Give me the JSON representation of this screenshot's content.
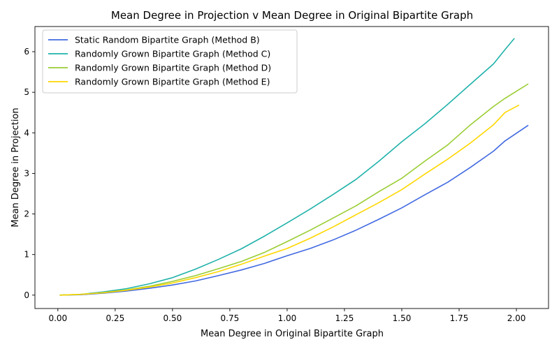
{
  "chart_data": {
    "type": "line",
    "title": "Mean Degree in Projection v Mean Degree in Original Bipartite Graph",
    "xlabel": "Mean Degree in Original Bipartite Graph",
    "ylabel": "Mean Degree in Projection",
    "xlim": [
      -0.1,
      2.14
    ],
    "ylim": [
      -0.33,
      6.62
    ],
    "xticks": [
      0.0,
      0.25,
      0.5,
      0.75,
      1.0,
      1.25,
      1.5,
      1.75,
      2.0
    ],
    "xtick_labels": [
      "0.00",
      "0.25",
      "0.50",
      "0.75",
      "1.00",
      "1.25",
      "1.50",
      "1.75",
      "2.00"
    ],
    "yticks": [
      0,
      1,
      2,
      3,
      4,
      5,
      6
    ],
    "ytick_labels": [
      "0",
      "1",
      "2",
      "3",
      "4",
      "5",
      "6"
    ],
    "grid": false,
    "legend_position": "top-left",
    "series": [
      {
        "name": "Static Random Bipartite Graph (Method B)",
        "color": "#4169E1",
        "x": [
          0.01,
          0.1,
          0.2,
          0.3,
          0.4,
          0.5,
          0.6,
          0.7,
          0.8,
          0.9,
          1.0,
          1.1,
          1.2,
          1.3,
          1.4,
          1.5,
          1.6,
          1.7,
          1.8,
          1.9,
          1.95,
          2.05
        ],
        "y": [
          0.0,
          0.01,
          0.05,
          0.1,
          0.17,
          0.25,
          0.35,
          0.48,
          0.62,
          0.78,
          0.97,
          1.15,
          1.36,
          1.6,
          1.87,
          2.15,
          2.47,
          2.78,
          3.15,
          3.55,
          3.8,
          4.18
        ]
      },
      {
        "name": "Randomly Grown Bipartite Graph (Method C)",
        "color": "#20B2AA",
        "x": [
          0.01,
          0.1,
          0.2,
          0.3,
          0.4,
          0.5,
          0.6,
          0.7,
          0.8,
          0.9,
          1.0,
          1.1,
          1.2,
          1.3,
          1.4,
          1.5,
          1.6,
          1.7,
          1.8,
          1.9,
          1.95,
          1.99
        ],
        "y": [
          0.0,
          0.02,
          0.08,
          0.16,
          0.28,
          0.43,
          0.64,
          0.88,
          1.14,
          1.45,
          1.78,
          2.12,
          2.48,
          2.85,
          3.3,
          3.78,
          4.22,
          4.7,
          5.2,
          5.7,
          6.05,
          6.32
        ]
      },
      {
        "name": "Randomly Grown Bipartite Graph (Method D)",
        "color": "#9ACD32",
        "x": [
          0.01,
          0.1,
          0.2,
          0.3,
          0.4,
          0.5,
          0.6,
          0.7,
          0.8,
          0.9,
          1.0,
          1.1,
          1.2,
          1.3,
          1.4,
          1.5,
          1.6,
          1.7,
          1.8,
          1.9,
          1.95,
          2.05
        ],
        "y": [
          0.0,
          0.02,
          0.06,
          0.13,
          0.22,
          0.34,
          0.48,
          0.65,
          0.83,
          1.05,
          1.32,
          1.6,
          1.9,
          2.2,
          2.55,
          2.88,
          3.3,
          3.7,
          4.2,
          4.65,
          4.85,
          5.2
        ]
      },
      {
        "name": "Randomly Grown Bipartite Graph (Method E)",
        "color": "#FFD700",
        "x": [
          0.01,
          0.1,
          0.2,
          0.3,
          0.4,
          0.5,
          0.6,
          0.7,
          0.8,
          0.9,
          1.0,
          1.1,
          1.2,
          1.3,
          1.4,
          1.5,
          1.6,
          1.7,
          1.8,
          1.9,
          1.95,
          2.01
        ],
        "y": [
          0.0,
          0.02,
          0.06,
          0.12,
          0.2,
          0.3,
          0.43,
          0.58,
          0.76,
          0.96,
          1.15,
          1.4,
          1.68,
          1.98,
          2.28,
          2.6,
          2.98,
          3.35,
          3.75,
          4.2,
          4.5,
          4.68
        ]
      }
    ]
  }
}
